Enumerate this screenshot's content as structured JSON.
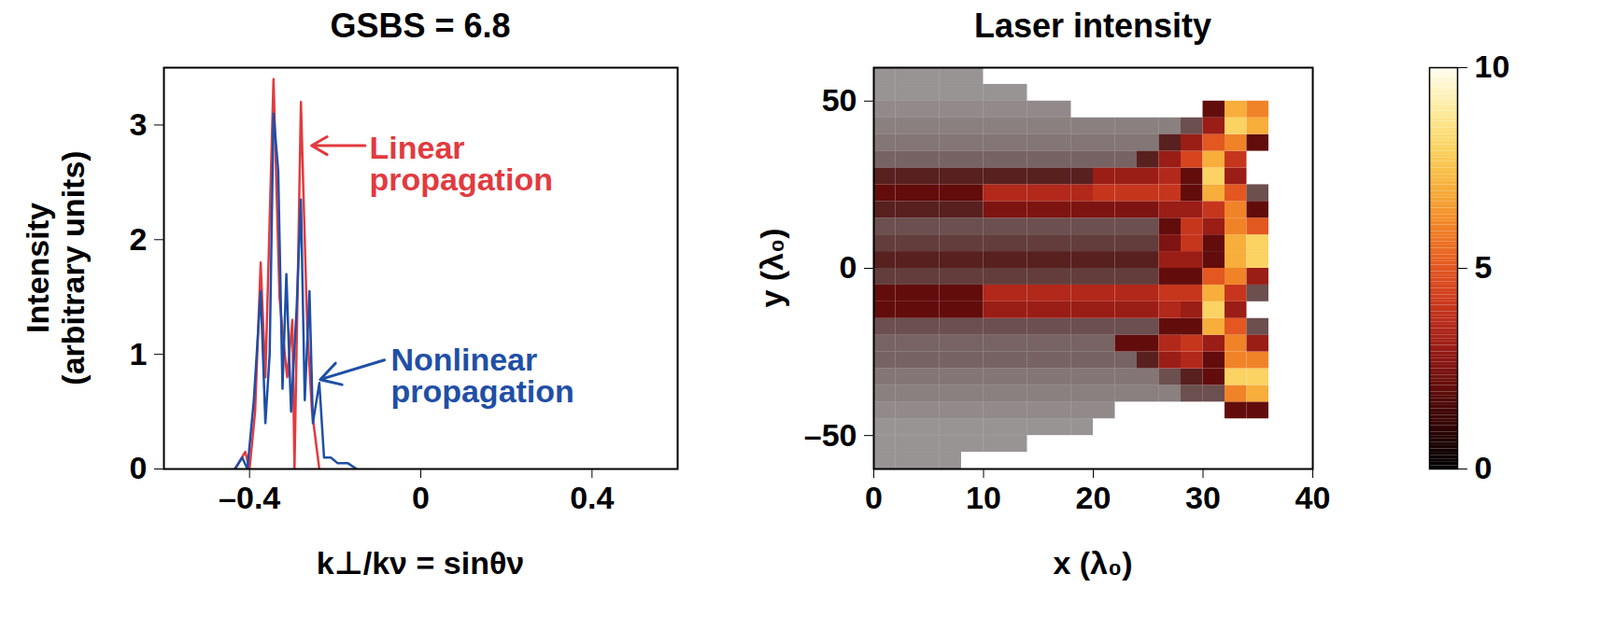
{
  "chart_data": [
    {
      "type": "line",
      "title": "GSBS = 6.8",
      "xlabel": "k⊥/kν = sinθν",
      "ylabel": "Intensity (arbitrary units)",
      "xlim": [
        -0.6,
        0.6
      ],
      "xticks": [
        {
          "value": -0.4,
          "label": "–0.4"
        },
        0,
        0.4
      ],
      "ylim": [
        0,
        3.5
      ],
      "yticks": [
        0,
        1,
        2,
        3
      ],
      "series": [
        {
          "name": "Linear propagation",
          "color": "#e23a3f",
          "x": [
            -0.434,
            -0.41,
            -0.4,
            -0.387,
            -0.374,
            -0.363,
            -0.344,
            -0.33,
            -0.323,
            -0.312,
            -0.3,
            -0.295,
            -0.28,
            -0.265,
            -0.254,
            -0.237
          ],
          "values": [
            0,
            0.15,
            0,
            0.5,
            1.8,
            0.8,
            3.4,
            1.5,
            1.2,
            0.8,
            1.3,
            0,
            3.2,
            1.2,
            0.5,
            0
          ]
        },
        {
          "name": "Nonlinear propagation",
          "color": "#1f4fa6",
          "x": [
            -0.434,
            -0.417,
            -0.405,
            -0.39,
            -0.374,
            -0.363,
            -0.353,
            -0.344,
            -0.333,
            -0.323,
            -0.314,
            -0.303,
            -0.29,
            -0.28,
            -0.271,
            -0.26,
            -0.252,
            -0.237,
            -0.226,
            -0.21,
            -0.194,
            -0.17,
            -0.15
          ],
          "values": [
            0,
            0.1,
            0,
            0.6,
            1.55,
            0.4,
            1.0,
            3.1,
            2.6,
            0.7,
            1.7,
            0.5,
            1.4,
            2.35,
            0.6,
            1.55,
            0.4,
            0.75,
            0.1,
            0.1,
            0.05,
            0.05,
            0
          ]
        }
      ],
      "annotations": [
        {
          "series": "Linear propagation",
          "x": -0.12,
          "y": 2.66,
          "arrow_from": [
            -0.13,
            2.82
          ],
          "arrow_to": [
            -0.255,
            2.82
          ]
        },
        {
          "series": "Nonlinear propagation",
          "x": -0.07,
          "y": 0.81,
          "arrow_from": [
            -0.085,
            0.95
          ],
          "arrow_to": [
            -0.235,
            0.78
          ]
        }
      ]
    },
    {
      "type": "heatmap",
      "title": "Laser intensity",
      "xlabel": "x (λ₀)",
      "ylabel": "y (λ₀)",
      "xlim": [
        0,
        40
      ],
      "xticks": [
        0,
        10,
        20,
        30,
        40
      ],
      "ylim": [
        -60,
        60
      ],
      "yticks": [
        {
          "value": -50,
          "label": "–50"
        },
        0,
        50
      ],
      "cells": {
        "x_edges": [
          0,
          2,
          4,
          6,
          8,
          10,
          12,
          14,
          16,
          18,
          20,
          22,
          24,
          26,
          28,
          30,
          32,
          34,
          36,
          38,
          40
        ],
        "y_edges": [
          -60,
          -55,
          -50,
          -45,
          -40,
          -35,
          -30,
          -25,
          -20,
          -15,
          -10,
          -5,
          0,
          5,
          10,
          15,
          20,
          25,
          30,
          35,
          40,
          45,
          50,
          55,
          60
        ],
        "values": [
          [
            0.3,
            0.3,
            0.3,
            0.3,
            null,
            null,
            null,
            null,
            null,
            null,
            null,
            null,
            null,
            null,
            null,
            null,
            null,
            null,
            null,
            null
          ],
          [
            0.3,
            0.3,
            0.3,
            0.3,
            0.3,
            0.3,
            0.3,
            null,
            null,
            null,
            null,
            null,
            null,
            null,
            null,
            null,
            null,
            null,
            null,
            null
          ],
          [
            0.3,
            0.3,
            0.3,
            0.3,
            0.3,
            0.3,
            0.3,
            0.3,
            0.3,
            0.3,
            null,
            null,
            null,
            null,
            null,
            null,
            null,
            null,
            null,
            null
          ],
          [
            0.4,
            0.4,
            0.4,
            0.4,
            0.4,
            0.4,
            0.4,
            0.4,
            0.4,
            0.4,
            0.4,
            null,
            null,
            null,
            null,
            null,
            2,
            2,
            null,
            null
          ],
          [
            0.5,
            0.5,
            0.5,
            0.5,
            0.5,
            0.5,
            0.5,
            0.5,
            0.5,
            0.5,
            0.5,
            0.5,
            0.5,
            0.5,
            1,
            1,
            6,
            7,
            null,
            null
          ],
          [
            0.6,
            0.6,
            0.6,
            0.6,
            0.6,
            0.6,
            0.6,
            0.6,
            0.6,
            0.6,
            0.6,
            0.6,
            0.6,
            1,
            1.5,
            2,
            8,
            8,
            null,
            null
          ],
          [
            0.8,
            0.8,
            0.8,
            0.8,
            0.8,
            0.8,
            0.8,
            0.8,
            0.8,
            0.8,
            0.8,
            0.8,
            1.5,
            3,
            3.5,
            2,
            6,
            6,
            null,
            null
          ],
          [
            0.8,
            0.8,
            0.8,
            0.8,
            0.8,
            0.8,
            0.8,
            0.8,
            0.8,
            0.8,
            0.8,
            2,
            2,
            3.5,
            4,
            3,
            6,
            3,
            null,
            null
          ],
          [
            1,
            1,
            1,
            1,
            1,
            1,
            1,
            1,
            1,
            1,
            1,
            1,
            1,
            2,
            2,
            7,
            5,
            1,
            null,
            null
          ],
          [
            2,
            2,
            2,
            2,
            2,
            3,
            3,
            3,
            3,
            3,
            3,
            3,
            3,
            3.5,
            3,
            8,
            3,
            null,
            null,
            null
          ],
          [
            2,
            2,
            2,
            2,
            2,
            3.5,
            3.5,
            3.5,
            3.5,
            3.5,
            3.5,
            3.5,
            3.5,
            4,
            4,
            7,
            4,
            1,
            null,
            null
          ],
          [
            1.2,
            1.2,
            1.2,
            1.2,
            1.2,
            1.2,
            1.2,
            1.2,
            1.2,
            1.2,
            1.2,
            1.2,
            1.2,
            2,
            2,
            5,
            6,
            3,
            null,
            null
          ],
          [
            1.5,
            1.5,
            1.5,
            1.5,
            1.5,
            1.5,
            1.5,
            1.5,
            1.5,
            1.5,
            1.5,
            1.5,
            1.5,
            3,
            3,
            2,
            7,
            8,
            null,
            null
          ],
          [
            1.2,
            1.2,
            1.2,
            1.2,
            1.2,
            1.2,
            1.2,
            1.2,
            1.2,
            1.2,
            1.2,
            1.2,
            1.2,
            2.5,
            4,
            2,
            7,
            8,
            null,
            null
          ],
          [
            1,
            1,
            1,
            1,
            1,
            1,
            1,
            1,
            1,
            1,
            1,
            1,
            1,
            2,
            4,
            3,
            6,
            5,
            null,
            null
          ],
          [
            1.5,
            1.5,
            1.5,
            1.5,
            1.5,
            2.5,
            2.5,
            2.5,
            2.5,
            2.5,
            2.5,
            2.5,
            2.5,
            3,
            3,
            4,
            6,
            2,
            null,
            null
          ],
          [
            2,
            2,
            2,
            2,
            2,
            3.5,
            3.5,
            3.5,
            3.5,
            3.5,
            4,
            4,
            4,
            4,
            2,
            7,
            5,
            1,
            null,
            null
          ],
          [
            1.5,
            1.5,
            1.5,
            1.5,
            1.5,
            1.5,
            1.5,
            1.5,
            1.5,
            1.5,
            3,
            3,
            3,
            3.5,
            2,
            8,
            3,
            null,
            null,
            null
          ],
          [
            0.8,
            0.8,
            0.8,
            0.8,
            0.8,
            0.8,
            0.8,
            0.8,
            0.8,
            0.8,
            0.8,
            0.8,
            1.5,
            3,
            4.5,
            7,
            4,
            null,
            null,
            null
          ],
          [
            0.6,
            0.6,
            0.6,
            0.6,
            0.6,
            0.6,
            0.6,
            0.6,
            0.6,
            0.6,
            0.6,
            0.6,
            0.6,
            1.5,
            3,
            5,
            6,
            2,
            null,
            null
          ],
          [
            0.5,
            0.5,
            0.5,
            0.5,
            0.5,
            0.5,
            0.5,
            0.5,
            0.5,
            0.5,
            0.5,
            0.5,
            0.5,
            0.5,
            1,
            3,
            8,
            7,
            null,
            null
          ],
          [
            0.4,
            0.4,
            0.4,
            0.4,
            0.4,
            0.4,
            0.4,
            0.4,
            0.4,
            null,
            null,
            null,
            null,
            null,
            null,
            2,
            7,
            6,
            null,
            null
          ],
          [
            0.3,
            0.3,
            0.3,
            0.3,
            0.3,
            0.3,
            0.3,
            null,
            null,
            null,
            null,
            null,
            null,
            null,
            null,
            null,
            null,
            null,
            null,
            null
          ],
          [
            0.3,
            0.3,
            0.3,
            0.3,
            0.3,
            null,
            null,
            null,
            null,
            null,
            null,
            null,
            null,
            null,
            null,
            null,
            null,
            null,
            null,
            null
          ]
        ]
      },
      "colorbar": {
        "range": [
          0,
          10
        ],
        "ticks": [
          0,
          5,
          10
        ]
      }
    }
  ]
}
